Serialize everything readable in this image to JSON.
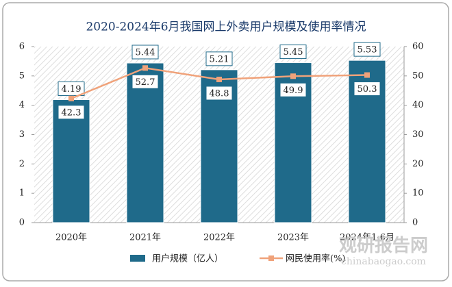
{
  "chart_data": {
    "type": "bar-line",
    "title": "2020-2024年6月我国网上外卖用户规模及使用率情况",
    "categories": [
      "2020年",
      "2021年",
      "2022年",
      "2023年",
      "2024年1-6月"
    ],
    "series": [
      {
        "name": "用户规模（亿人）",
        "type": "bar",
        "color": "#1f6a8a",
        "values": [
          4.19,
          5.44,
          5.21,
          5.45,
          5.53
        ]
      },
      {
        "name": "网民使用率(%)",
        "type": "line",
        "axis": "y2",
        "color": "#f0a27a",
        "values": [
          42.3,
          52.7,
          48.8,
          49.9,
          50.3
        ]
      }
    ],
    "ylim": [
      0,
      6
    ],
    "yticks": [
      0,
      1,
      2,
      3,
      4,
      5,
      6
    ],
    "y2lim": [
      0,
      60
    ],
    "y2ticks": [
      0,
      10,
      20,
      30,
      40,
      50,
      60
    ],
    "watermark": "观研报告网",
    "watermark_url": "chinabaogao.com"
  }
}
